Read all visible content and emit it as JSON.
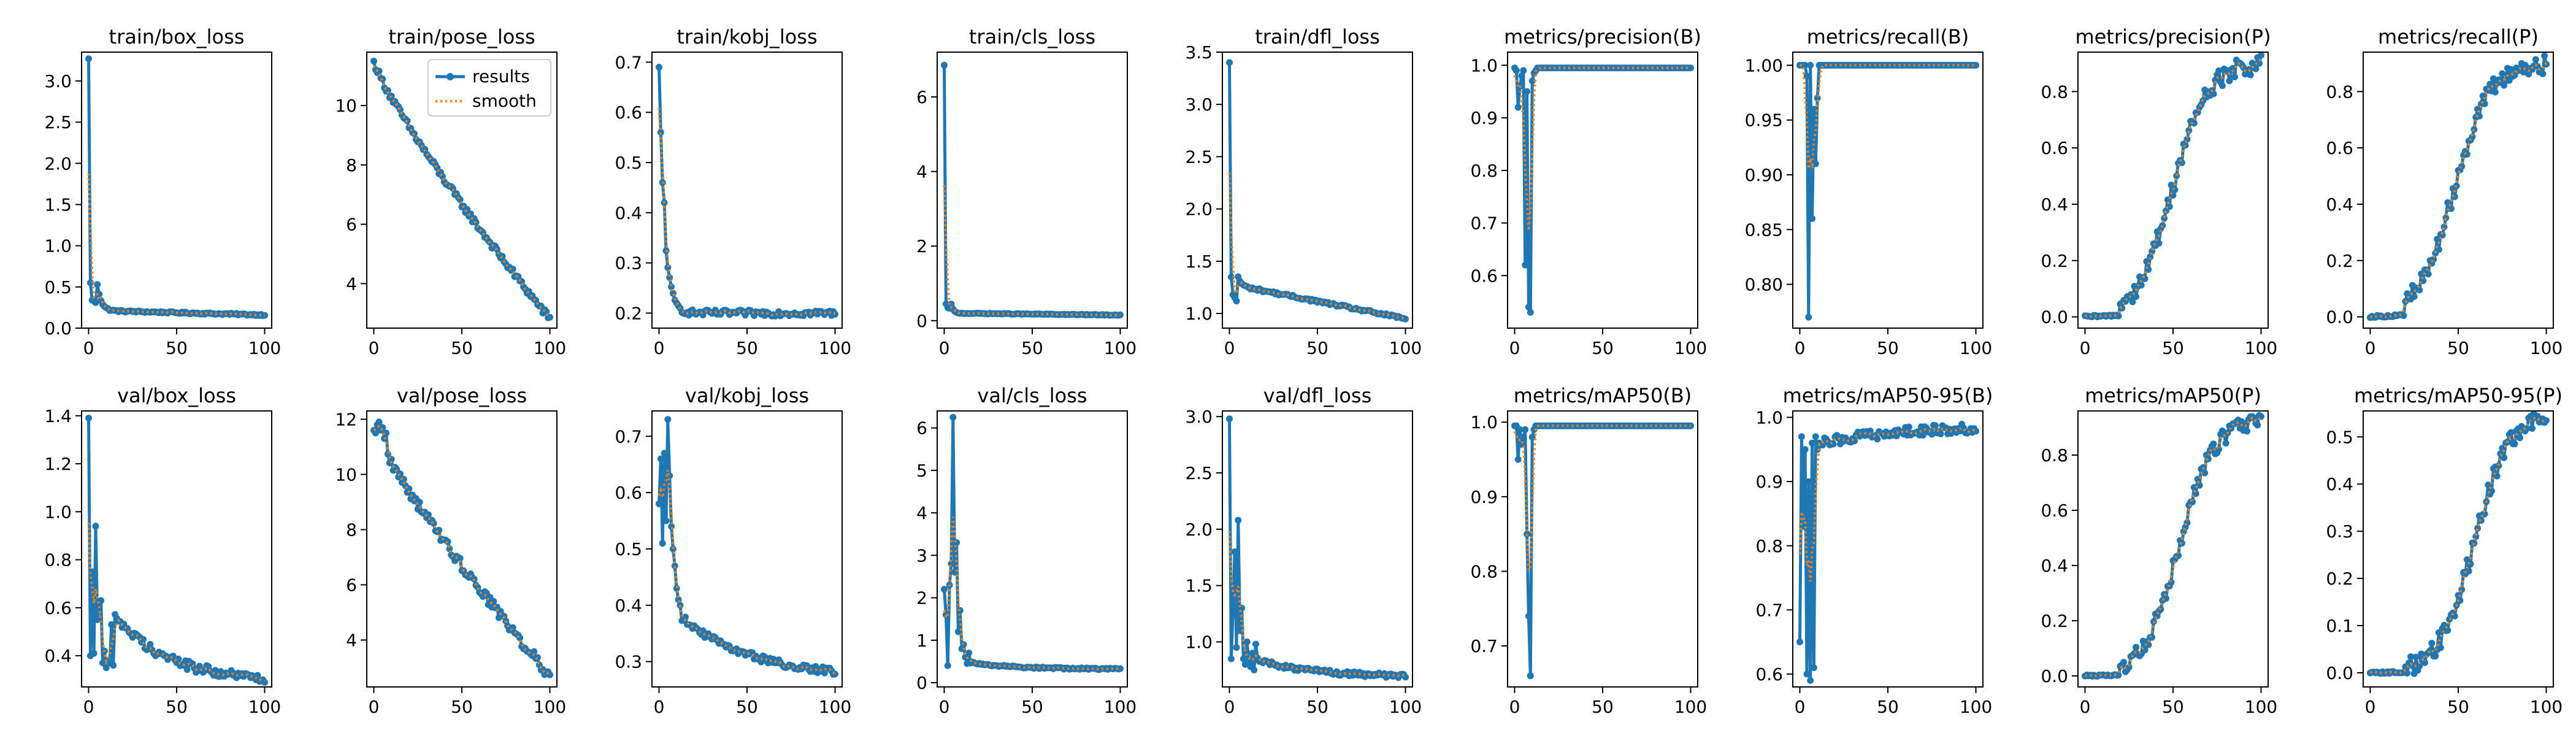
{
  "chart_data": [
    {
      "type": "line",
      "title": "train/box_loss",
      "xlim": [
        -4,
        104
      ],
      "ylim": [
        0,
        3.35
      ],
      "xticks": [
        0,
        50,
        100
      ],
      "yticks": [
        0.0,
        0.5,
        1.0,
        1.5,
        2.0,
        2.5,
        3.0
      ],
      "yfmt": 1,
      "shape": "exp",
      "start": 3.27,
      "end": 0.16,
      "tau": 2.2,
      "noise": 0.01,
      "overrides": [
        [
          1,
          0.55
        ],
        [
          2,
          0.34
        ],
        [
          3,
          0.33
        ],
        [
          4,
          0.31
        ]
      ],
      "legend": false,
      "series": [
        {
          "name": "results"
        },
        {
          "name": "smooth"
        }
      ]
    },
    {
      "type": "line",
      "title": "train/pose_loss",
      "xlim": [
        -4,
        104
      ],
      "ylim": [
        2.5,
        11.8
      ],
      "xticks": [
        0,
        50,
        100
      ],
      "yticks": [
        4,
        6,
        8,
        10
      ],
      "yfmt": 0,
      "shape": "decay",
      "start": 11.5,
      "end": 2.8,
      "tau": 55,
      "noise": 0.12,
      "overrides": [],
      "legend": true,
      "series": [
        {
          "name": "results"
        },
        {
          "name": "smooth"
        }
      ]
    },
    {
      "type": "line",
      "title": "train/kobj_loss",
      "xlim": [
        -4,
        104
      ],
      "ylim": [
        0.17,
        0.72
      ],
      "xticks": [
        0,
        50,
        100
      ],
      "yticks": [
        0.2,
        0.3,
        0.4,
        0.5,
        0.6,
        0.7
      ],
      "yfmt": 1,
      "shape": "decay2",
      "start": 0.69,
      "end": 0.2,
      "tau": 3,
      "noise": 0.006,
      "overrides": [
        [
          1,
          0.56
        ],
        [
          2,
          0.46
        ],
        [
          3,
          0.42
        ]
      ],
      "legend": false,
      "series": [
        {
          "name": "results"
        },
        {
          "name": "smooth"
        }
      ]
    },
    {
      "type": "line",
      "title": "train/cls_loss",
      "xlim": [
        -4,
        104
      ],
      "ylim": [
        -0.2,
        7.2
      ],
      "xticks": [
        0,
        50,
        100
      ],
      "yticks": [
        0,
        2,
        4,
        6
      ],
      "yfmt": 0,
      "shape": "exp",
      "start": 6.85,
      "end": 0.15,
      "tau": 1.2,
      "noise": 0.01,
      "overrides": [
        [
          1,
          0.45
        ],
        [
          2,
          0.35
        ],
        [
          3,
          0.33
        ]
      ],
      "legend": false,
      "series": [
        {
          "name": "results"
        },
        {
          "name": "smooth"
        }
      ]
    },
    {
      "type": "line",
      "title": "train/dfl_loss",
      "xlim": [
        -4,
        104
      ],
      "ylim": [
        0.86,
        3.5
      ],
      "xticks": [
        0,
        50,
        100
      ],
      "yticks": [
        1.0,
        1.5,
        2.0,
        2.5,
        3.0,
        3.5
      ],
      "yfmt": 1,
      "shape": "exp",
      "start": 3.4,
      "end": 0.95,
      "tau": 1.5,
      "noise": 0.012,
      "overrides": [
        [
          1,
          1.35
        ],
        [
          2,
          1.18
        ],
        [
          3,
          1.15
        ],
        [
          4,
          1.12
        ]
      ],
      "legend": false,
      "series": [
        {
          "name": "results"
        },
        {
          "name": "smooth"
        }
      ]
    },
    {
      "type": "line",
      "title": "metrics/precision(B)",
      "xlim": [
        -4,
        104
      ],
      "ylim": [
        0.5,
        1.025
      ],
      "xticks": [
        0,
        50,
        100
      ],
      "yticks": [
        0.6,
        0.7,
        0.8,
        0.9,
        1.0
      ],
      "yfmt": 1,
      "shape": "flat",
      "start": 0.995,
      "end": 0.995,
      "tau": 1,
      "noise": 0.0,
      "overrides": [
        [
          0,
          0.995
        ],
        [
          1,
          0.99
        ],
        [
          2,
          0.92
        ],
        [
          3,
          0.96
        ],
        [
          4,
          0.98
        ],
        [
          5,
          0.99
        ],
        [
          6,
          0.62
        ],
        [
          7,
          0.95
        ],
        [
          8,
          0.54
        ],
        [
          9,
          0.53
        ],
        [
          10,
          0.97
        ],
        [
          11,
          0.985
        ],
        [
          12,
          0.99
        ]
      ],
      "legend": false,
      "series": [
        {
          "name": "results"
        },
        {
          "name": "smooth"
        }
      ]
    },
    {
      "type": "line",
      "title": "metrics/recall(B)",
      "xlim": [
        -4,
        104
      ],
      "ylim": [
        0.76,
        1.012
      ],
      "xticks": [
        0,
        50,
        100
      ],
      "yticks": [
        0.8,
        0.85,
        0.9,
        0.95,
        1.0
      ],
      "yfmt": 2,
      "shape": "flat",
      "start": 1.0,
      "end": 1.0,
      "tau": 1,
      "noise": 0.0,
      "overrides": [
        [
          0,
          1.0
        ],
        [
          1,
          1.0
        ],
        [
          2,
          1.0
        ],
        [
          3,
          1.0
        ],
        [
          4,
          0.99
        ],
        [
          5,
          0.77
        ],
        [
          6,
          1.0
        ],
        [
          7,
          0.86
        ],
        [
          8,
          0.96
        ],
        [
          9,
          0.91
        ],
        [
          10,
          0.97
        ],
        [
          11,
          1.0
        ]
      ],
      "legend": false,
      "series": [
        {
          "name": "results"
        },
        {
          "name": "smooth"
        }
      ]
    },
    {
      "type": "line",
      "title": "metrics/precision(P)",
      "xlim": [
        -4,
        104
      ],
      "ylim": [
        -0.04,
        0.94
      ],
      "xticks": [
        0,
        50,
        100
      ],
      "yticks": [
        0.0,
        0.2,
        0.4,
        0.6,
        0.8
      ],
      "yfmt": 1,
      "shape": "sigmoid",
      "start": 0.0,
      "end": 0.9,
      "tau": 52,
      "noise": 0.035,
      "overrides": [],
      "legend": false,
      "series": [
        {
          "name": "results"
        },
        {
          "name": "smooth"
        }
      ]
    },
    {
      "type": "line",
      "title": "metrics/recall(P)",
      "xlim": [
        -4,
        104
      ],
      "ylim": [
        -0.04,
        0.94
      ],
      "xticks": [
        0,
        50,
        100
      ],
      "yticks": [
        0.0,
        0.2,
        0.4,
        0.6,
        0.8
      ],
      "yfmt": 1,
      "shape": "sigmoid",
      "start": 0.0,
      "end": 0.9,
      "tau": 50,
      "noise": 0.035,
      "overrides": [],
      "legend": false,
      "series": [
        {
          "name": "results"
        },
        {
          "name": "smooth"
        }
      ]
    },
    {
      "type": "line",
      "title": "val/box_loss",
      "xlim": [
        -4,
        104
      ],
      "ylim": [
        0.27,
        1.42
      ],
      "xticks": [
        0,
        50,
        100
      ],
      "yticks": [
        0.4,
        0.6,
        0.8,
        1.0,
        1.2,
        1.4
      ],
      "yfmt": 1,
      "shape": "decay2",
      "start": 0.75,
      "end": 0.29,
      "tau": 30,
      "noise": 0.02,
      "overrides": [
        [
          0,
          1.39
        ],
        [
          1,
          0.4
        ],
        [
          2,
          0.75
        ],
        [
          3,
          0.41
        ],
        [
          4,
          0.94
        ],
        [
          5,
          0.55
        ],
        [
          6,
          0.61
        ],
        [
          7,
          0.63
        ],
        [
          8,
          0.37
        ],
        [
          9,
          0.42
        ],
        [
          10,
          0.35
        ],
        [
          11,
          0.38
        ],
        [
          12,
          0.37
        ],
        [
          13,
          0.53
        ],
        [
          14,
          0.36
        ]
      ],
      "legend": false,
      "series": [
        {
          "name": "results"
        },
        {
          "name": "smooth"
        }
      ]
    },
    {
      "type": "line",
      "title": "val/pose_loss",
      "xlim": [
        -4,
        104
      ],
      "ylim": [
        2.3,
        12.3
      ],
      "xticks": [
        0,
        50,
        100
      ],
      "yticks": [
        4,
        6,
        8,
        10,
        12
      ],
      "yfmt": 0,
      "shape": "decay",
      "start": 11.7,
      "end": 2.7,
      "tau": 50,
      "noise": 0.2,
      "overrides": [
        [
          0,
          11.6
        ],
        [
          1,
          11.5
        ],
        [
          2,
          11.8
        ],
        [
          3,
          11.9
        ],
        [
          4,
          11.6
        ],
        [
          5,
          11.7
        ],
        [
          6,
          11.3
        ],
        [
          7,
          11.5
        ]
      ],
      "legend": false,
      "series": [
        {
          "name": "results"
        },
        {
          "name": "smooth"
        }
      ]
    },
    {
      "type": "line",
      "title": "val/kobj_loss",
      "xlim": [
        -4,
        104
      ],
      "ylim": [
        0.255,
        0.745
      ],
      "xticks": [
        0,
        50,
        100
      ],
      "yticks": [
        0.3,
        0.4,
        0.5,
        0.6,
        0.7
      ],
      "yfmt": 1,
      "shape": "decay2",
      "start": 0.42,
      "end": 0.27,
      "tau": 40,
      "noise": 0.006,
      "overrides": [
        [
          0,
          0.58
        ],
        [
          1,
          0.66
        ],
        [
          2,
          0.51
        ],
        [
          3,
          0.67
        ],
        [
          4,
          0.55
        ],
        [
          5,
          0.73
        ],
        [
          6,
          0.63
        ],
        [
          7,
          0.54
        ],
        [
          8,
          0.5
        ],
        [
          9,
          0.47
        ],
        [
          10,
          0.43
        ],
        [
          11,
          0.41
        ],
        [
          12,
          0.4
        ]
      ],
      "legend": false,
      "series": [
        {
          "name": "results"
        },
        {
          "name": "smooth"
        }
      ]
    },
    {
      "type": "line",
      "title": "val/cls_loss",
      "xlim": [
        -4,
        104
      ],
      "ylim": [
        -0.1,
        6.4
      ],
      "xticks": [
        0,
        50,
        100
      ],
      "yticks": [
        0,
        1,
        2,
        3,
        4,
        5,
        6
      ],
      "yfmt": 0,
      "shape": "decay2",
      "start": 0.6,
      "end": 0.32,
      "tau": 25,
      "noise": 0.02,
      "overrides": [
        [
          0,
          2.2
        ],
        [
          1,
          1.6
        ],
        [
          2,
          0.4
        ],
        [
          3,
          2.3
        ],
        [
          4,
          2.8
        ],
        [
          5,
          6.25
        ],
        [
          6,
          2.6
        ],
        [
          7,
          3.3
        ],
        [
          8,
          1.2
        ],
        [
          9,
          1.7
        ],
        [
          10,
          0.8
        ],
        [
          11,
          0.9
        ],
        [
          12,
          0.6
        ],
        [
          13,
          0.45
        ],
        [
          14,
          0.7
        ]
      ],
      "legend": false,
      "series": [
        {
          "name": "results"
        },
        {
          "name": "smooth"
        }
      ]
    },
    {
      "type": "line",
      "title": "val/dfl_loss",
      "xlim": [
        -4,
        104
      ],
      "ylim": [
        0.6,
        3.05
      ],
      "xticks": [
        0,
        50,
        100
      ],
      "yticks": [
        1.0,
        1.5,
        2.0,
        2.5,
        3.0
      ],
      "yfmt": 1,
      "shape": "decay2",
      "start": 0.95,
      "end": 0.69,
      "tau": 30,
      "noise": 0.02,
      "overrides": [
        [
          0,
          2.98
        ],
        [
          1,
          0.85
        ],
        [
          2,
          1.25
        ],
        [
          3,
          1.8
        ],
        [
          4,
          0.95
        ],
        [
          5,
          2.08
        ],
        [
          6,
          1.1
        ],
        [
          7,
          1.3
        ],
        [
          8,
          0.85
        ],
        [
          9,
          0.8
        ],
        [
          10,
          1.0
        ],
        [
          11,
          0.82
        ],
        [
          12,
          0.78
        ],
        [
          13,
          0.9
        ],
        [
          14,
          0.75
        ],
        [
          15,
          0.98
        ]
      ],
      "legend": false,
      "series": [
        {
          "name": "results"
        },
        {
          "name": "smooth"
        }
      ]
    },
    {
      "type": "line",
      "title": "metrics/mAP50(B)",
      "xlim": [
        -4,
        104
      ],
      "ylim": [
        0.645,
        1.015
      ],
      "xticks": [
        0,
        50,
        100
      ],
      "yticks": [
        0.7,
        0.8,
        0.9,
        1.0
      ],
      "yfmt": 1,
      "shape": "flat",
      "start": 0.995,
      "end": 0.995,
      "tau": 1,
      "noise": 0.0,
      "overrides": [
        [
          0,
          0.995
        ],
        [
          1,
          0.995
        ],
        [
          2,
          0.95
        ],
        [
          3,
          0.99
        ],
        [
          4,
          0.97
        ],
        [
          5,
          0.98
        ],
        [
          6,
          0.99
        ],
        [
          7,
          0.85
        ],
        [
          8,
          0.74
        ],
        [
          9,
          0.66
        ],
        [
          10,
          0.98
        ],
        [
          11,
          0.99
        ],
        [
          12,
          0.995
        ]
      ],
      "legend": false,
      "series": [
        {
          "name": "results"
        },
        {
          "name": "smooth"
        }
      ]
    },
    {
      "type": "line",
      "title": "metrics/mAP50-95(B)",
      "xlim": [
        -4,
        104
      ],
      "ylim": [
        0.58,
        1.01
      ],
      "xticks": [
        0,
        50,
        100
      ],
      "yticks": [
        0.6,
        0.7,
        0.8,
        0.9,
        1.0
      ],
      "yfmt": 1,
      "shape": "rise",
      "start": 0.95,
      "end": 0.985,
      "tau": 40,
      "noise": 0.008,
      "overrides": [
        [
          0,
          0.65
        ],
        [
          1,
          0.97
        ],
        [
          2,
          0.83
        ],
        [
          3,
          0.95
        ],
        [
          4,
          0.6
        ],
        [
          5,
          0.9
        ],
        [
          6,
          0.59
        ],
        [
          7,
          0.96
        ],
        [
          8,
          0.61
        ],
        [
          9,
          0.97
        ],
        [
          10,
          0.95
        ],
        [
          11,
          0.96
        ]
      ],
      "legend": false,
      "series": [
        {
          "name": "results"
        },
        {
          "name": "smooth"
        }
      ]
    },
    {
      "type": "line",
      "title": "metrics/mAP50(P)",
      "xlim": [
        -4,
        104
      ],
      "ylim": [
        -0.04,
        0.96
      ],
      "xticks": [
        0,
        50,
        100
      ],
      "yticks": [
        0.0,
        0.2,
        0.4,
        0.6,
        0.8
      ],
      "yfmt": 1,
      "shape": "sigmoid",
      "start": 0.0,
      "end": 0.93,
      "tau": 56,
      "noise": 0.03,
      "overrides": [],
      "legend": false,
      "series": [
        {
          "name": "results"
        },
        {
          "name": "smooth"
        }
      ]
    },
    {
      "type": "line",
      "title": "metrics/mAP50-95(P)",
      "xlim": [
        -4,
        104
      ],
      "ylim": [
        -0.03,
        0.555
      ],
      "xticks": [
        0,
        50,
        100
      ],
      "yticks": [
        0.0,
        0.1,
        0.2,
        0.3,
        0.4,
        0.5
      ],
      "yfmt": 1,
      "shape": "sigmoid",
      "start": 0.0,
      "end": 0.55,
      "tau": 62,
      "noise": 0.02,
      "overrides": [],
      "legend": false,
      "series": [
        {
          "name": "results"
        },
        {
          "name": "smooth"
        }
      ]
    }
  ],
  "legend": {
    "results_label": "results",
    "smooth_label": "smooth"
  },
  "colors": {
    "results": "#1f77b4",
    "smooth": "#ff7f0e"
  }
}
